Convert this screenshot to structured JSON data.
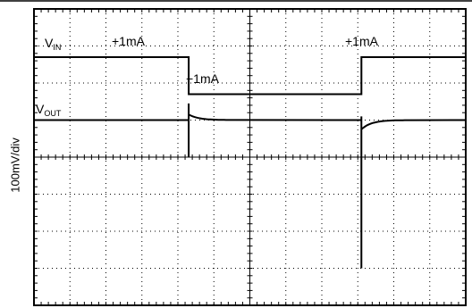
{
  "chart_data": {
    "type": "line",
    "ylabel": "100mV/div",
    "grid": true,
    "traces": [
      {
        "name_main": "V",
        "name_sub": "IN",
        "points": [
          [
            0,
            2
          ],
          [
            4.3,
            2
          ],
          [
            4.3,
            1
          ],
          [
            9.1,
            1
          ],
          [
            9.1,
            2
          ],
          [
            12,
            2
          ]
        ]
      },
      {
        "name_main": "V",
        "name_sub": "OUT",
        "baseline_div": 0,
        "transients": [
          {
            "t": 4.3,
            "spike_top": 0.45,
            "spike_bottom": -1.0,
            "decay_start": 0.15
          },
          {
            "t": 9.1,
            "spike_top": 0.1,
            "spike_bottom": -4.0,
            "decay_start": -0.25
          }
        ]
      }
    ],
    "annotations": [
      "+1mA",
      "−1mA",
      "+1mA"
    ]
  }
}
